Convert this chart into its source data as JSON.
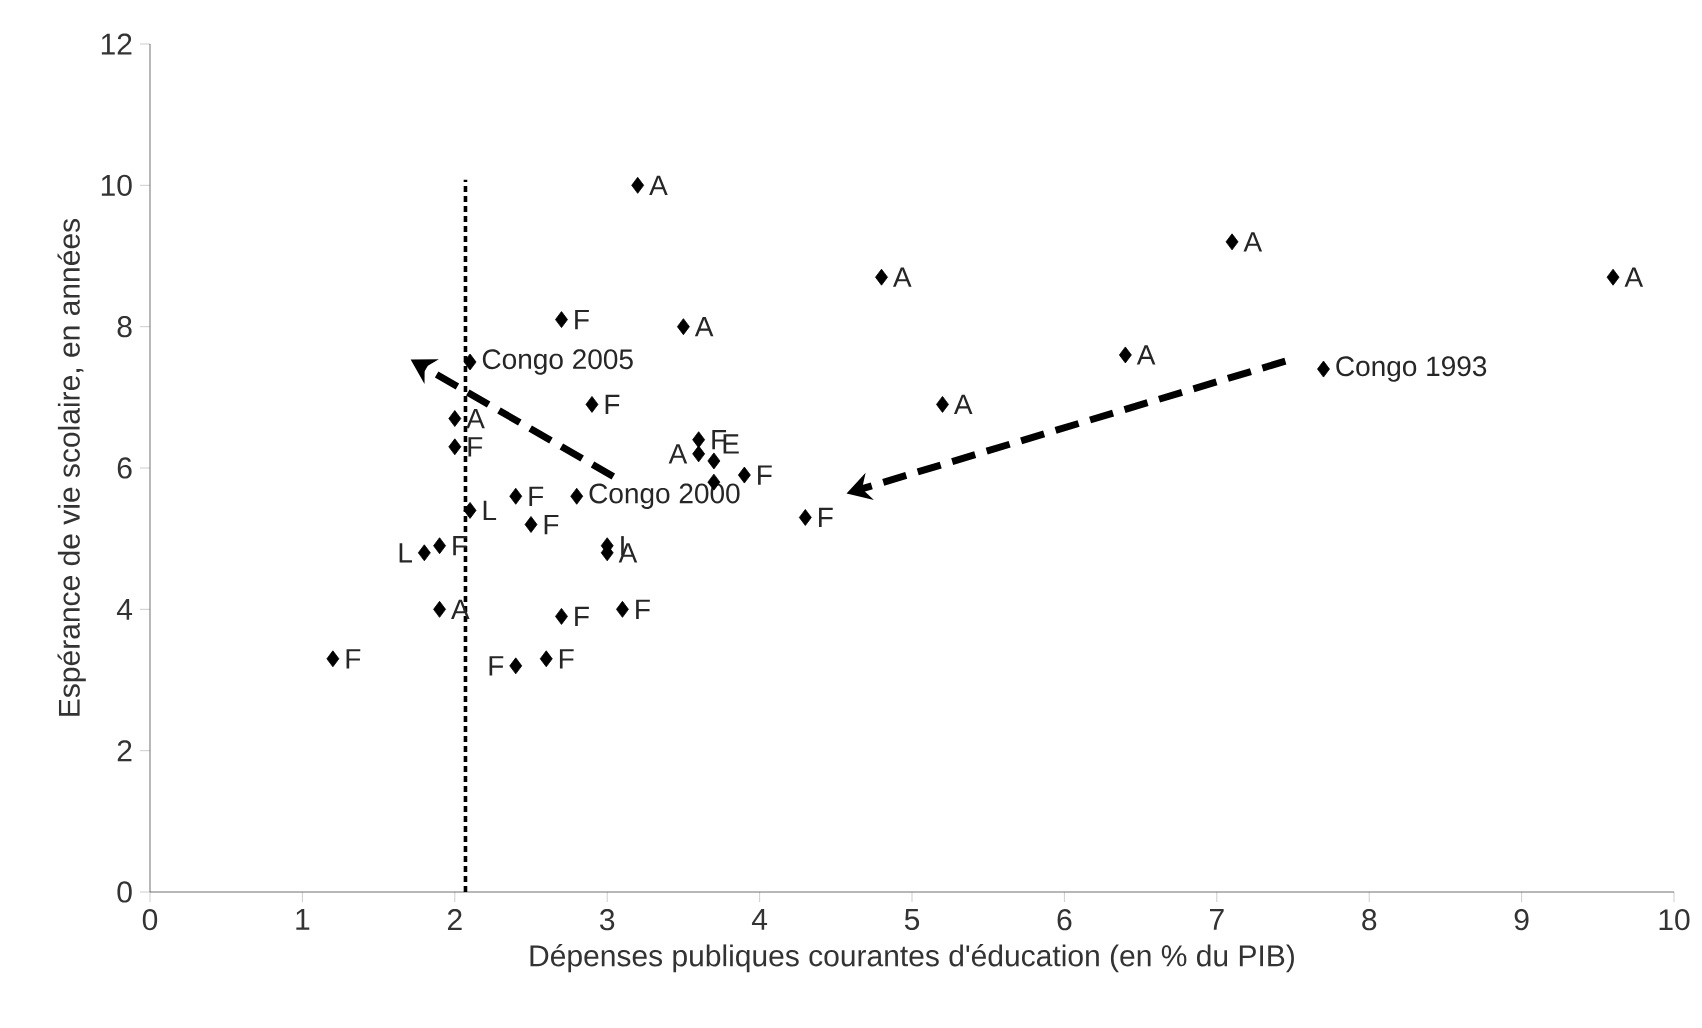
{
  "chart_data": {
    "type": "scatter",
    "xlabel": "Dépenses publiques courantes d'éducation (en % du PIB)",
    "ylabel": "Espérance de vie scolaire, en années",
    "xlim": [
      0,
      10
    ],
    "ylim": [
      0,
      12
    ],
    "xticks": [
      0,
      1,
      2,
      3,
      4,
      5,
      6,
      7,
      8,
      9,
      10
    ],
    "yticks": [
      0,
      2,
      4,
      6,
      8,
      10,
      12
    ],
    "grid": false,
    "marker": "diamond",
    "series": [
      {
        "color": "#000000",
        "x": [
          1.2,
          1.8,
          1.9,
          1.9,
          2.0,
          2.0,
          2.1,
          2.1,
          2.4,
          2.4,
          2.5,
          2.6,
          2.7,
          2.7,
          2.8,
          2.9,
          3.0,
          3.0,
          3.1,
          3.2,
          3.5,
          3.6,
          3.6,
          3.7,
          3.7,
          3.9,
          4.3,
          4.8,
          5.2,
          6.4,
          7.1,
          7.7,
          9.6
        ],
        "values": [
          3.3,
          4.8,
          4.9,
          4.0,
          6.7,
          6.3,
          7.5,
          5.4,
          5.6,
          3.2,
          5.2,
          3.3,
          8.1,
          3.9,
          5.6,
          6.9,
          4.9,
          4.8,
          4.0,
          10.0,
          8.0,
          6.4,
          6.2,
          6.1,
          5.8,
          5.9,
          5.3,
          8.7,
          6.9,
          7.6,
          9.2,
          7.4,
          8.7
        ]
      }
    ],
    "ref_lines": [
      {
        "axis": "x",
        "value": 2.07,
        "color": "#000000",
        "line_style": "dotted"
      }
    ],
    "annotations": [
      {
        "text": "F",
        "x": 1.2,
        "y": 3.3
      },
      {
        "text": "L",
        "x": 1.8,
        "y": 4.8
      },
      {
        "text": "F",
        "x": 1.9,
        "y": 4.9
      },
      {
        "text": "A",
        "x": 1.9,
        "y": 4.0
      },
      {
        "text": "A",
        "x": 2.0,
        "y": 6.7
      },
      {
        "text": "F",
        "x": 2.0,
        "y": 6.3
      },
      {
        "text": "Congo 2005",
        "x": 2.1,
        "y": 7.5
      },
      {
        "text": "L",
        "x": 2.1,
        "y": 5.4
      },
      {
        "text": "F",
        "x": 2.4,
        "y": 5.6
      },
      {
        "text": "F",
        "x": 2.4,
        "y": 3.2
      },
      {
        "text": "F",
        "x": 2.5,
        "y": 5.2
      },
      {
        "text": "F",
        "x": 2.6,
        "y": 3.3
      },
      {
        "text": "F",
        "x": 2.7,
        "y": 8.1
      },
      {
        "text": "F",
        "x": 2.7,
        "y": 3.9
      },
      {
        "text": "Congo 2000",
        "x": 2.8,
        "y": 5.6
      },
      {
        "text": "F",
        "x": 2.9,
        "y": 6.9
      },
      {
        "text": "I",
        "x": 3.0,
        "y": 4.9
      },
      {
        "text": "A",
        "x": 3.0,
        "y": 4.8
      },
      {
        "text": "F",
        "x": 3.1,
        "y": 4.0
      },
      {
        "text": "A",
        "x": 3.2,
        "y": 10.0
      },
      {
        "text": "A",
        "x": 3.5,
        "y": 8.0
      },
      {
        "text": "F",
        "x": 3.6,
        "y": 6.4
      },
      {
        "text": "A",
        "x": 3.6,
        "y": 6.2
      },
      {
        "text": "E",
        "x": 3.7,
        "y": 6.1
      },
      {
        "text": "F",
        "x": 3.9,
        "y": 5.9
      },
      {
        "text": "F",
        "x": 4.3,
        "y": 5.3
      },
      {
        "text": "A",
        "x": 4.8,
        "y": 8.7
      },
      {
        "text": "A",
        "x": 5.2,
        "y": 6.9
      },
      {
        "text": "A",
        "x": 6.4,
        "y": 7.6
      },
      {
        "text": "A",
        "x": 7.1,
        "y": 9.2
      },
      {
        "text": "Congo 1993",
        "x": 7.7,
        "y": 7.4
      },
      {
        "text": "A",
        "x": 9.6,
        "y": 8.7
      }
    ]
  }
}
